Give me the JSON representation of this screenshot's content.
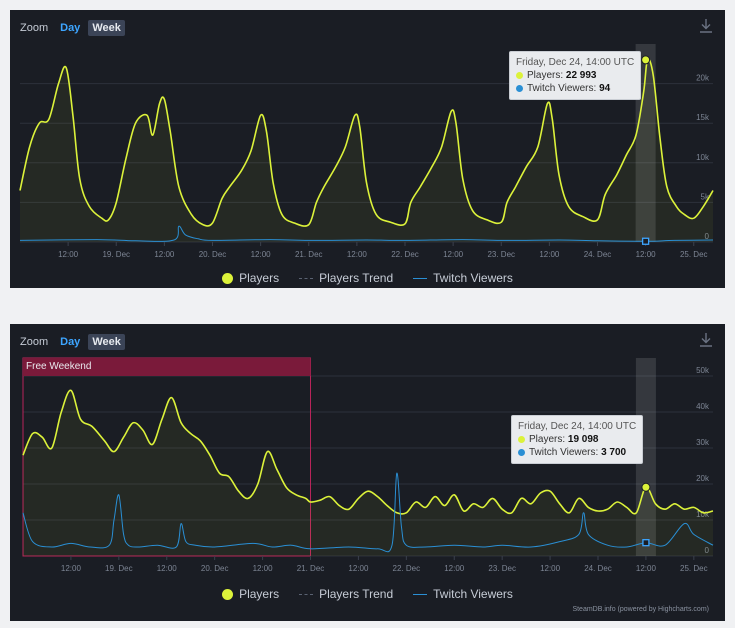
{
  "colors": {
    "players": "#dcf23a",
    "twitch": "#2a8fd4",
    "trend": "#5a6272",
    "bg": "#1a1d24",
    "highlight": "#ffffff",
    "band": "#7a1a3a"
  },
  "icons": {
    "download": "download-icon"
  },
  "chart_data": [
    {
      "type": "line",
      "zoom_label": "Zoom",
      "zoom_day": "Day",
      "zoom_week": "Week",
      "x_range": [
        0,
        7.2
      ],
      "x_ticks": [
        {
          "x": 0.5,
          "label": "12:00"
        },
        {
          "x": 1,
          "label": "19. Dec"
        },
        {
          "x": 1.5,
          "label": "12:00"
        },
        {
          "x": 2,
          "label": "20. Dec"
        },
        {
          "x": 2.5,
          "label": "12:00"
        },
        {
          "x": 3,
          "label": "21. Dec"
        },
        {
          "x": 3.5,
          "label": "12:00"
        },
        {
          "x": 4,
          "label": "22. Dec"
        },
        {
          "x": 4.5,
          "label": "12:00"
        },
        {
          "x": 5,
          "label": "23. Dec"
        },
        {
          "x": 5.5,
          "label": "12:00"
        },
        {
          "x": 6,
          "label": "24. Dec"
        },
        {
          "x": 6.5,
          "label": "12:00"
        },
        {
          "x": 7,
          "label": "25. Dec"
        }
      ],
      "y_range": [
        0,
        25000
      ],
      "y_ticks": [
        {
          "v": 0,
          "label": "0"
        },
        {
          "v": 5000,
          "label": "5k"
        },
        {
          "v": 10000,
          "label": "10k"
        },
        {
          "v": 15000,
          "label": "15k"
        },
        {
          "v": 20000,
          "label": "20k"
        }
      ],
      "series": [
        {
          "name": "Players",
          "x": [
            0,
            0.1,
            0.2,
            0.3,
            0.4,
            0.48,
            0.55,
            0.62,
            0.72,
            0.85,
            0.92,
            1.0,
            1.1,
            1.2,
            1.32,
            1.38,
            1.45,
            1.5,
            1.56,
            1.65,
            1.78,
            1.9,
            2.0,
            2.1,
            2.18,
            2.3,
            2.4,
            2.5,
            2.56,
            2.63,
            2.72,
            2.85,
            3.0,
            3.08,
            3.16,
            3.28,
            3.38,
            3.48,
            3.53,
            3.6,
            3.7,
            3.85,
            4.0,
            4.06,
            4.16,
            4.28,
            4.38,
            4.48,
            4.53,
            4.6,
            4.7,
            4.85,
            5.0,
            5.06,
            5.15,
            5.26,
            5.38,
            5.48,
            5.53,
            5.6,
            5.7,
            5.85,
            6.0,
            6.08,
            6.2,
            6.3,
            6.4,
            6.48,
            6.52,
            6.58,
            6.65,
            6.72,
            6.82,
            6.9,
            7.0,
            7.1,
            7.2
          ],
          "y": [
            6500,
            12000,
            15000,
            15500,
            20000,
            22000,
            16000,
            8000,
            4500,
            3000,
            2800,
            5000,
            10500,
            15000,
            16000,
            13500,
            17500,
            18000,
            14000,
            7000,
            3500,
            2200,
            2400,
            5500,
            7000,
            9000,
            11500,
            16000,
            14000,
            7500,
            3500,
            2400,
            2200,
            5000,
            7000,
            9500,
            12000,
            16000,
            14500,
            7500,
            3500,
            2500,
            2300,
            5000,
            7000,
            9500,
            12000,
            16500,
            15000,
            8000,
            4000,
            2800,
            2500,
            5000,
            7000,
            9500,
            12000,
            17500,
            15500,
            8500,
            4500,
            3200,
            2800,
            6000,
            8500,
            11000,
            13500,
            19000,
            22993,
            21000,
            13000,
            7000,
            4500,
            3500,
            3000,
            4500,
            6500
          ]
        },
        {
          "name": "Twitch Viewers",
          "x": [
            0,
            0.8,
            1.2,
            1.6,
            1.65,
            1.72,
            1.85,
            2.0,
            2.6,
            3.0,
            3.6,
            4.0,
            4.6,
            5.0,
            5.6,
            6.0,
            6.5,
            6.8,
            7.2
          ],
          "y": [
            200,
            300,
            150,
            250,
            2000,
            900,
            400,
            200,
            300,
            200,
            250,
            200,
            300,
            200,
            250,
            150,
            94,
            200,
            250
          ]
        },
        {
          "name": "Players Trend"
        }
      ],
      "legend": [
        "Players",
        "Players Trend",
        "Twitch Viewers"
      ],
      "highlight_x": 6.5,
      "tooltip": {
        "title": "Friday, Dec 24, 14:00 UTC",
        "players_label": "Players:",
        "players_value": "22 993",
        "twitch_label": "Twitch Viewers:",
        "twitch_value": "94"
      },
      "points": {
        "players": 22993,
        "twitch": 94
      }
    },
    {
      "type": "line",
      "zoom_label": "Zoom",
      "zoom_day": "Day",
      "zoom_week": "Week",
      "x_range": [
        0,
        7.2
      ],
      "x_ticks": [
        {
          "x": 0.5,
          "label": "12:00"
        },
        {
          "x": 1,
          "label": "19. Dec"
        },
        {
          "x": 1.5,
          "label": "12:00"
        },
        {
          "x": 2,
          "label": "20. Dec"
        },
        {
          "x": 2.5,
          "label": "12:00"
        },
        {
          "x": 3,
          "label": "21. Dec"
        },
        {
          "x": 3.5,
          "label": "12:00"
        },
        {
          "x": 4,
          "label": "22. Dec"
        },
        {
          "x": 4.5,
          "label": "12:00"
        },
        {
          "x": 5,
          "label": "23. Dec"
        },
        {
          "x": 5.5,
          "label": "12:00"
        },
        {
          "x": 6,
          "label": "24. Dec"
        },
        {
          "x": 6.5,
          "label": "12:00"
        },
        {
          "x": 7,
          "label": "25. Dec"
        }
      ],
      "y_range": [
        0,
        55000
      ],
      "y_ticks": [
        {
          "v": 0,
          "label": "0"
        },
        {
          "v": 10000,
          "label": "10k"
        },
        {
          "v": 20000,
          "label": "20k"
        },
        {
          "v": 30000,
          "label": "30k"
        },
        {
          "v": 40000,
          "label": "40k"
        },
        {
          "v": 50000,
          "label": "50k"
        }
      ],
      "series": [
        {
          "name": "Players",
          "x": [
            0,
            0.1,
            0.2,
            0.3,
            0.4,
            0.5,
            0.6,
            0.72,
            0.85,
            0.95,
            1.05,
            1.15,
            1.25,
            1.35,
            1.45,
            1.55,
            1.65,
            1.75,
            1.85,
            1.95,
            2.05,
            2.15,
            2.25,
            2.35,
            2.45,
            2.55,
            2.65,
            2.75,
            2.85,
            2.95,
            3.0,
            3.1,
            3.2,
            3.3,
            3.4,
            3.5,
            3.6,
            3.7,
            3.8,
            3.9,
            4.0,
            4.1,
            4.2,
            4.3,
            4.4,
            4.5,
            4.6,
            4.7,
            4.8,
            4.9,
            5.0,
            5.1,
            5.2,
            5.3,
            5.4,
            5.5,
            5.6,
            5.7,
            5.8,
            5.9,
            6.0,
            6.1,
            6.2,
            6.3,
            6.4,
            6.5,
            6.6,
            6.7,
            6.8,
            6.9,
            7.0,
            7.1,
            7.2
          ],
          "y": [
            28000,
            34000,
            33000,
            30000,
            40000,
            46000,
            38000,
            36000,
            32000,
            29000,
            33000,
            37000,
            35000,
            31000,
            38000,
            44000,
            37000,
            34000,
            32000,
            28000,
            23000,
            22000,
            18000,
            16000,
            20000,
            29000,
            24000,
            19000,
            17000,
            16000,
            15000,
            15500,
            16500,
            14000,
            13000,
            16000,
            18000,
            16500,
            14000,
            12000,
            12000,
            15000,
            13500,
            16500,
            14000,
            17000,
            12500,
            14500,
            13500,
            16000,
            13000,
            12000,
            16000,
            14500,
            17500,
            18000,
            14500,
            12000,
            16000,
            13500,
            12500,
            13000,
            15000,
            13500,
            12000,
            19098,
            14500,
            13000,
            14500,
            13000,
            13500,
            12000,
            12500
          ]
        },
        {
          "name": "Twitch Viewers",
          "x": [
            0,
            0.1,
            0.3,
            0.5,
            0.7,
            0.9,
            0.95,
            1.0,
            1.05,
            1.1,
            1.2,
            1.4,
            1.6,
            1.65,
            1.7,
            1.8,
            2.0,
            2.4,
            2.6,
            2.8,
            3.0,
            3.4,
            3.7,
            3.85,
            3.9,
            3.95,
            4.0,
            4.2,
            4.5,
            4.8,
            5.0,
            5.3,
            5.6,
            5.8,
            5.85,
            5.9,
            6.1,
            6.3,
            6.5,
            6.7,
            6.9,
            7.0,
            7.2
          ],
          "y": [
            12000,
            4000,
            2500,
            3500,
            2500,
            3000,
            10000,
            17000,
            6000,
            3000,
            2500,
            3000,
            2500,
            9000,
            4000,
            3000,
            2500,
            3500,
            2500,
            3000,
            2000,
            2500,
            2000,
            3000,
            23000,
            8000,
            3000,
            2500,
            3000,
            2500,
            3000,
            2500,
            4000,
            6000,
            12000,
            6000,
            3000,
            2500,
            3700,
            3000,
            9000,
            6000,
            3000
          ]
        },
        {
          "name": "Players Trend"
        }
      ],
      "legend": [
        "Players",
        "Players Trend",
        "Twitch Viewers"
      ],
      "highlight_x": 6.5,
      "band": {
        "x0": 0,
        "x1": 3,
        "label": "Free Weekend"
      },
      "tooltip": {
        "title": "Friday, Dec 24, 14:00 UTC",
        "players_label": "Players:",
        "players_value": "19 098",
        "twitch_label": "Twitch Viewers:",
        "twitch_value": "3 700"
      },
      "points": {
        "players": 19098,
        "twitch": 3700
      },
      "credit": "SteamDB.info (powered by Highcharts.com)"
    }
  ]
}
